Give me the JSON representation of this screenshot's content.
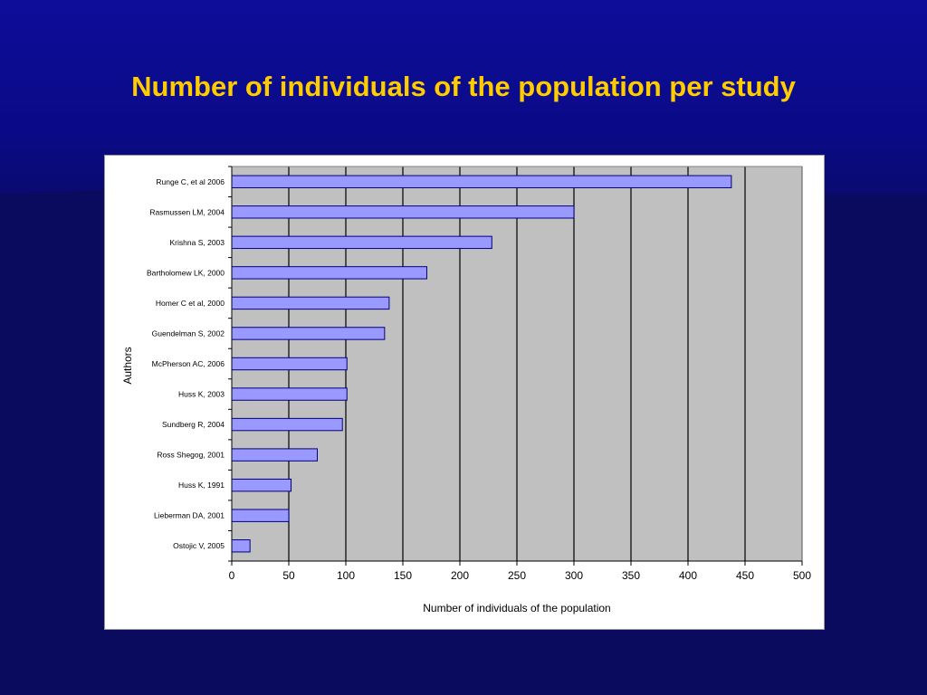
{
  "slide": {
    "title": "Number of individuals of the population per study"
  },
  "chart_data": {
    "type": "bar",
    "orientation": "horizontal",
    "title": "",
    "xlabel": "Number of individuals of the population",
    "ylabel": "Authors",
    "xlim": [
      0,
      500
    ],
    "xticks": [
      0,
      50,
      100,
      150,
      200,
      250,
      300,
      350,
      400,
      450,
      500
    ],
    "grid": true,
    "legend": "none",
    "colors": {
      "bar_fill": "#9999ff",
      "bar_stroke": "#000080",
      "plot_bg": "#c0c0c0",
      "gridline": "#000000"
    },
    "categories": [
      "Runge C, et al 2006",
      "Rasmussen LM, 2004",
      "Krishna S, 2003",
      "Bartholomew LK, 2000",
      "Homer C et al, 2000",
      "Guendelman S, 2002",
      "McPherson AC, 2006",
      "Huss K, 2003",
      "Sundberg R, 2004",
      "Ross Shegog, 2001",
      "Huss K, 1991",
      "Lieberman DA, 2001",
      "Ostojic V, 2005"
    ],
    "values": [
      438,
      300,
      228,
      171,
      138,
      134,
      101,
      101,
      97,
      75,
      52,
      50,
      16
    ]
  }
}
